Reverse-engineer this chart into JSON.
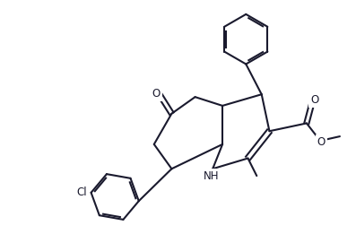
{
  "bg_color": "#ffffff",
  "line_color": "#1a1a2e",
  "line_width": 1.5,
  "text_color": "#1a1a2e",
  "font_size": 8.5,
  "figsize": [
    3.97,
    2.71
  ],
  "dpi": 100,
  "xlim": [
    0,
    10
  ],
  "ylim": [
    0,
    6.8
  ]
}
